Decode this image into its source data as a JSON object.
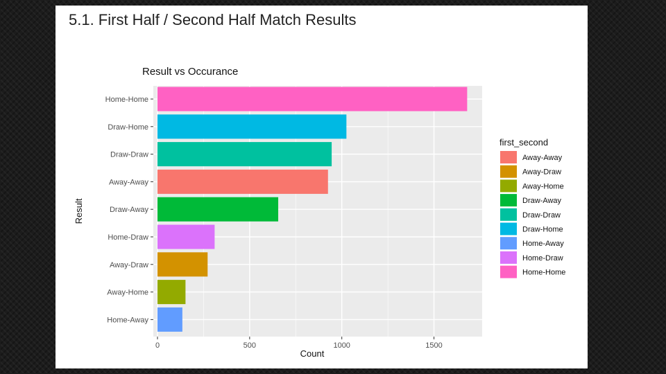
{
  "slide": {
    "title": "5.1. First Half / Second Half Match Results"
  },
  "chart_data": {
    "type": "bar",
    "orientation": "horizontal",
    "title": "Result vs Occurance",
    "xlabel": "Count",
    "ylabel": "Result",
    "xlim": [
      0,
      1750
    ],
    "x_ticks": [
      0,
      500,
      1000,
      1500
    ],
    "grid": true,
    "legend": {
      "title": "first_second",
      "position": "right",
      "entries": [
        {
          "label": "Away-Away",
          "color": "#F8766D"
        },
        {
          "label": "Away-Draw",
          "color": "#D39200"
        },
        {
          "label": "Away-Home",
          "color": "#93AA00"
        },
        {
          "label": "Draw-Away",
          "color": "#00BA38"
        },
        {
          "label": "Draw-Draw",
          "color": "#00C19F"
        },
        {
          "label": "Draw-Home",
          "color": "#00B9E3"
        },
        {
          "label": "Home-Away",
          "color": "#619CFF"
        },
        {
          "label": "Home-Draw",
          "color": "#DB72FB"
        },
        {
          "label": "Home-Home",
          "color": "#FF61C3"
        }
      ]
    },
    "categories": [
      "Home-Home",
      "Draw-Home",
      "Draw-Draw",
      "Away-Away",
      "Draw-Away",
      "Home-Draw",
      "Away-Draw",
      "Away-Home",
      "Home-Away"
    ],
    "values": [
      1680,
      1025,
      945,
      925,
      655,
      310,
      272,
      152,
      135
    ],
    "colors": [
      "#FF61C3",
      "#00B9E3",
      "#00C19F",
      "#F8766D",
      "#00BA38",
      "#DB72FB",
      "#D39200",
      "#93AA00",
      "#619CFF"
    ]
  }
}
